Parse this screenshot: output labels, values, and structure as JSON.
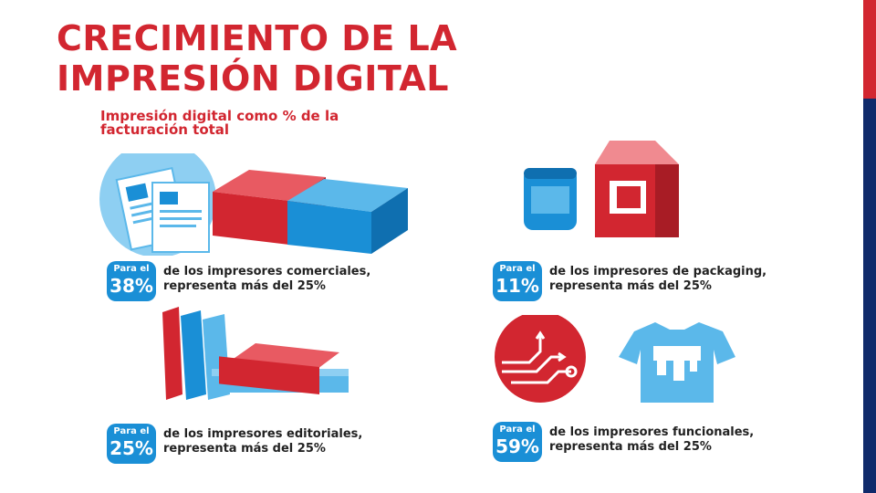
{
  "title": {
    "line1": "CRECIMIENTO DE LA",
    "line2": "IMPRESIÓN DIGITAL"
  },
  "subtitle": {
    "line1": "Impresión digital como % de la",
    "line2": "facturación total"
  },
  "colors": {
    "red": "#d22630",
    "blue": "#1a8fd6",
    "light_blue": "#5bb8ea",
    "navy": "#0f2a6b"
  },
  "stats": [
    {
      "para": "Para el",
      "pct": "38%",
      "line1": "de los impresores comerciales,",
      "line2": "representa más del 25%"
    },
    {
      "para": "Para el",
      "pct": "11%",
      "line1": "de los impresores de packaging,",
      "line2": "representa más del 25%"
    },
    {
      "para": "Para el",
      "pct": "25%",
      "line1": "de los impresores editoriales,",
      "line2": "representa más del 25%"
    },
    {
      "para": "Para el",
      "pct": "59%",
      "line1": "de los impresores funcionales,",
      "line2": "representa más del 25%"
    }
  ],
  "icons": [
    "documents-icon",
    "packaging-icon",
    "books-icon",
    "circuit-icon",
    "tshirt-icon"
  ]
}
